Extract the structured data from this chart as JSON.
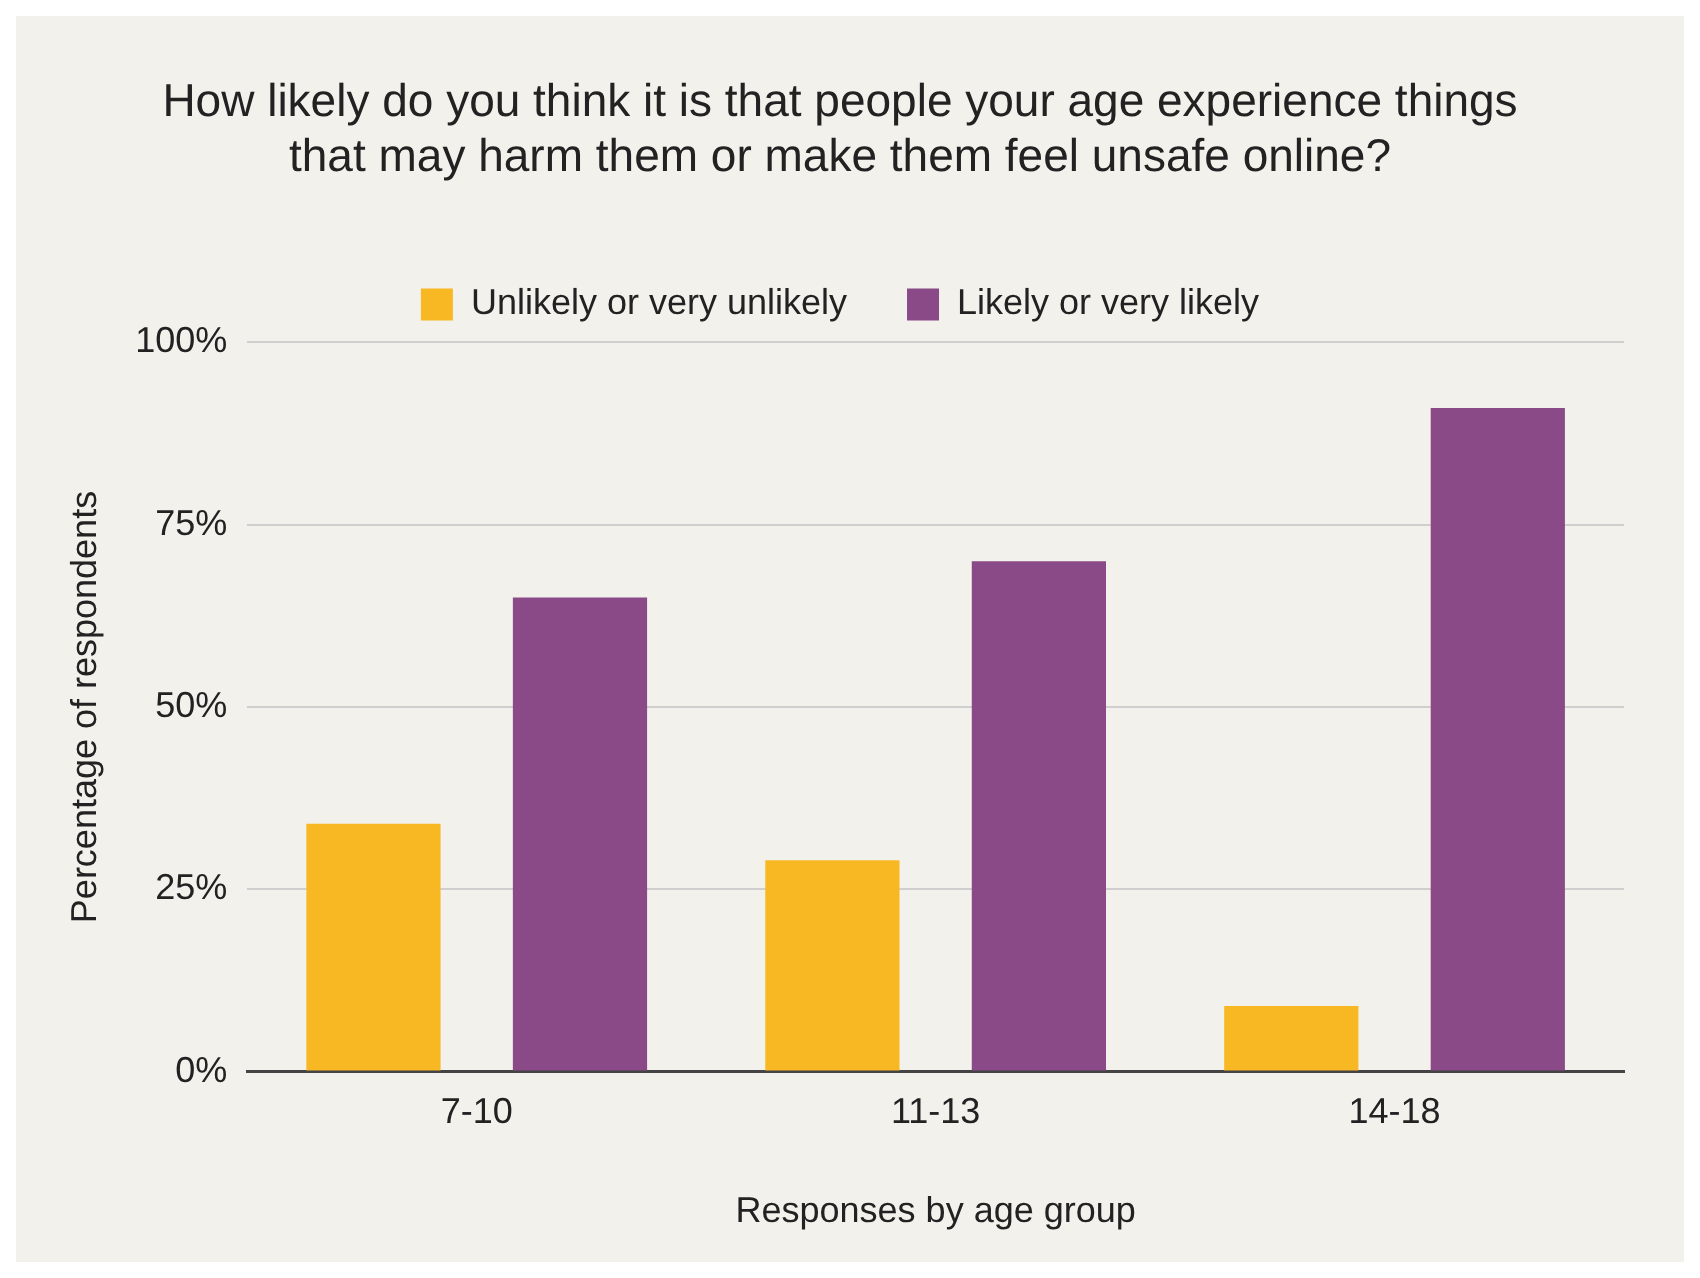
{
  "chart_data": {
    "type": "bar",
    "title": "How likely do you think it is that people your age experience things that may harm them or make them feel unsafe online?",
    "xlabel": "Responses by age group",
    "ylabel": "Percentage of respondents",
    "categories": [
      "7-10",
      "11-13",
      "14-18"
    ],
    "series": [
      {
        "name": "Unlikely or very unlikely",
        "color": "#f8b823",
        "values": [
          34,
          29,
          9
        ]
      },
      {
        "name": "Likely or very likely",
        "color": "#8a4a87",
        "values": [
          65,
          70,
          91
        ]
      }
    ],
    "ylim": [
      0,
      100
    ],
    "yticks": [
      {
        "value": 0,
        "label": "0%"
      },
      {
        "value": 25,
        "label": "25%"
      },
      {
        "value": 50,
        "label": "50%"
      },
      {
        "value": 75,
        "label": "75%"
      },
      {
        "value": 100,
        "label": "100%"
      }
    ],
    "grid": "y",
    "legend": "top"
  }
}
